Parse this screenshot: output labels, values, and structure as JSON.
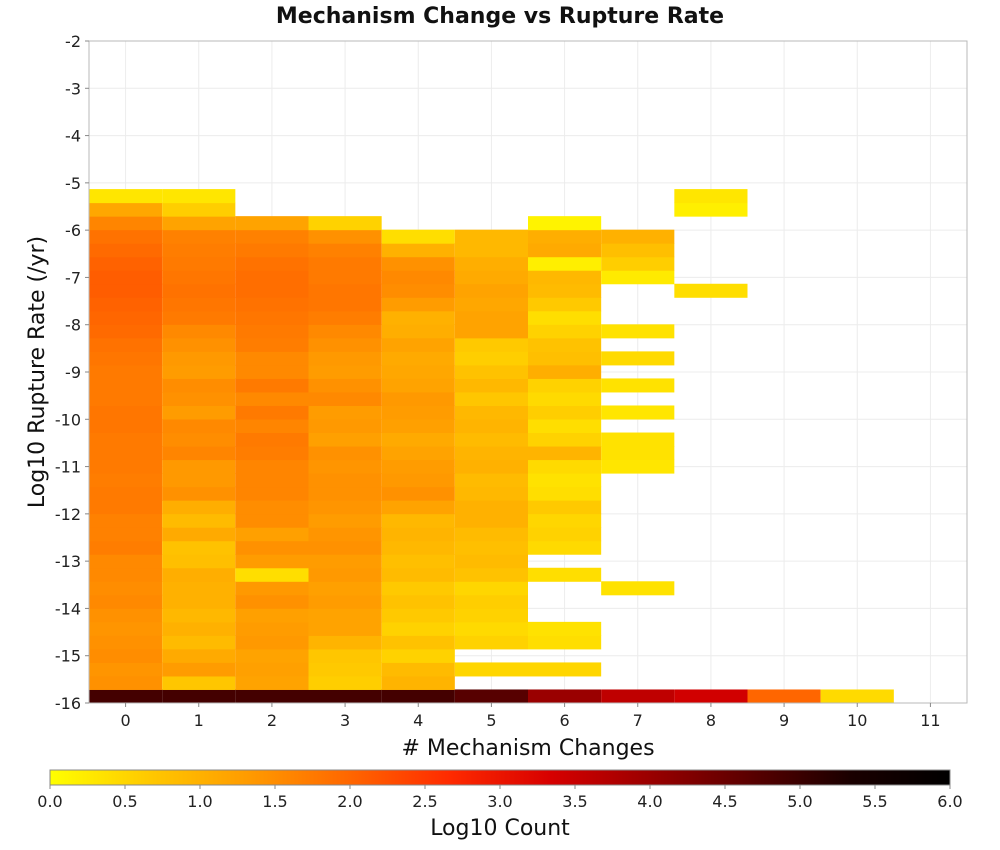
{
  "chart_data": {
    "type": "heatmap",
    "title": "Mechanism Change vs Rupture Rate",
    "xlabel": "# Mechanism Changes",
    "ylabel": "Log10 Rupture Rate (/yr)",
    "colorbar_label": "Log10 Count",
    "x_ticks": [
      "0",
      "1",
      "2",
      "3",
      "4",
      "5",
      "6",
      "7",
      "8",
      "9",
      "10",
      "11"
    ],
    "y_ticks": [
      "-2",
      "-3",
      "-4",
      "-5",
      "-6",
      "-7",
      "-8",
      "-9",
      "-10",
      "-11",
      "-12",
      "-13",
      "-14",
      "-15",
      "-16"
    ],
    "colorbar_ticks": [
      "0.0",
      "0.5",
      "1.0",
      "1.5",
      "2.0",
      "2.5",
      "3.0",
      "3.5",
      "4.0",
      "4.5",
      "5.0",
      "5.5",
      "6.0"
    ],
    "xlim": [
      -0.5,
      11.5
    ],
    "ylim": [
      -16,
      -2
    ],
    "clim": [
      0,
      6
    ],
    "colormap": [
      "#ffff00",
      "#ffc800",
      "#ff9a00",
      "#ff6600",
      "#ff2a00",
      "#d70000",
      "#9a0000",
      "#5a0000",
      "#1a0000",
      "#000000"
    ],
    "y_bin_width": 0.286,
    "y_bin_start": -16,
    "columns": [
      {
        "x": 0,
        "values": [
          4.9,
          1.45,
          1.4,
          1.5,
          1.45,
          1.4,
          1.45,
          1.55,
          1.5,
          1.55,
          1.55,
          1.7,
          1.65,
          1.65,
          1.75,
          1.75,
          1.7,
          1.75,
          1.75,
          1.75,
          1.8,
          1.8,
          1.75,
          1.75,
          1.75,
          1.8,
          1.85,
          1.95,
          2.0,
          2.05,
          2.1,
          2.1,
          2.05,
          1.95,
          1.85,
          1.6,
          1.15,
          0.3
        ]
      },
      {
        "x": 1,
        "values": [
          4.9,
          0.7,
          1.3,
          1.1,
          0.85,
          1.0,
          0.9,
          1.0,
          1.0,
          1.05,
          0.8,
          0.75,
          1.1,
          0.85,
          1.05,
          1.45,
          1.35,
          1.35,
          1.6,
          1.5,
          1.55,
          1.3,
          1.45,
          1.5,
          1.3,
          1.35,
          1.45,
          1.55,
          1.75,
          1.8,
          1.85,
          1.8,
          1.75,
          1.7,
          1.65,
          1.2,
          0.6,
          0.3
        ]
      },
      {
        "x": 2,
        "values": [
          4.9,
          1.2,
          1.25,
          1.2,
          1.35,
          1.3,
          1.25,
          1.45,
          1.35,
          0.4,
          1.3,
          1.45,
          1.25,
          1.5,
          1.5,
          1.6,
          1.6,
          1.6,
          1.7,
          1.75,
          1.6,
          1.75,
          1.55,
          1.75,
          1.55,
          1.55,
          1.7,
          1.75,
          1.8,
          1.85,
          1.9,
          1.9,
          1.85,
          1.75,
          1.65,
          1.2
        ]
      },
      {
        "x": 3,
        "values": [
          4.9,
          0.6,
          0.65,
          0.7,
          0.95,
          1.2,
          1.2,
          1.3,
          1.25,
          1.35,
          1.3,
          1.45,
          1.4,
          1.3,
          1.4,
          1.45,
          1.45,
          1.4,
          1.45,
          1.25,
          1.35,
          1.3,
          1.55,
          1.45,
          1.3,
          1.35,
          1.45,
          1.55,
          1.7,
          1.8,
          1.8,
          1.75,
          1.75,
          1.65,
          1.45,
          0.55
        ]
      },
      {
        "x": 4,
        "values": [
          4.9,
          0.95,
          0.85,
          0.55,
          0.75,
          0.55,
          0.65,
          0.75,
          0.65,
          0.85,
          0.8,
          0.9,
          0.95,
          0.9,
          1.2,
          1.45,
          1.35,
          1.3,
          1.2,
          1.1,
          1.25,
          1.3,
          1.35,
          1.2,
          1.15,
          1.1,
          1.2,
          1.05,
          1.0,
          1.3,
          1.5,
          1.55,
          1.45,
          1.0,
          0.4
        ]
      },
      {
        "x": 5,
        "values": [
          4.7,
          null,
          0.5,
          null,
          0.55,
          0.45,
          0.55,
          0.6,
          0.5,
          0.75,
          0.85,
          0.8,
          0.85,
          1.0,
          1.0,
          0.9,
          0.85,
          1.0,
          0.95,
          0.85,
          0.95,
          0.9,
          0.7,
          0.9,
          0.75,
          0.6,
          0.65,
          1.2,
          1.2,
          1.15,
          1.2,
          1.1,
          1.05,
          0.9,
          0.9
        ]
      },
      {
        "x": 6,
        "values": [
          4.0,
          null,
          0.5,
          null,
          0.4,
          0.35,
          null,
          null,
          null,
          0.4,
          null,
          0.45,
          0.55,
          0.5,
          0.65,
          0.4,
          0.35,
          0.45,
          0.95,
          0.55,
          0.4,
          0.6,
          0.45,
          0.55,
          1.05,
          0.8,
          0.75,
          0.55,
          0.4,
          0.65,
          0.85,
          0.9,
          0.2,
          1.1,
          1.05,
          0.15
        ]
      },
      {
        "x": 7,
        "values": [
          3.6,
          null,
          null,
          null,
          null,
          null,
          null,
          null,
          0.35,
          null,
          null,
          null,
          null,
          null,
          null,
          null,
          null,
          0.3,
          0.35,
          0.35,
          null,
          0.3,
          null,
          0.35,
          null,
          0.45,
          null,
          0.35,
          null,
          null,
          null,
          0.25,
          0.6,
          0.8,
          1.0
        ]
      },
      {
        "x": 8,
        "values": [
          3.4,
          null,
          null,
          null,
          null,
          null,
          null,
          null,
          null,
          null,
          null,
          null,
          null,
          null,
          null,
          null,
          null,
          null,
          null,
          null,
          null,
          null,
          null,
          null,
          null,
          null,
          null,
          null,
          null,
          null,
          0.4,
          null,
          null,
          null,
          null,
          null,
          0.2,
          0.3
        ]
      },
      {
        "x": 9,
        "values": [
          2.0
        ]
      },
      {
        "x": 10,
        "values": [
          0.45
        ]
      }
    ]
  }
}
